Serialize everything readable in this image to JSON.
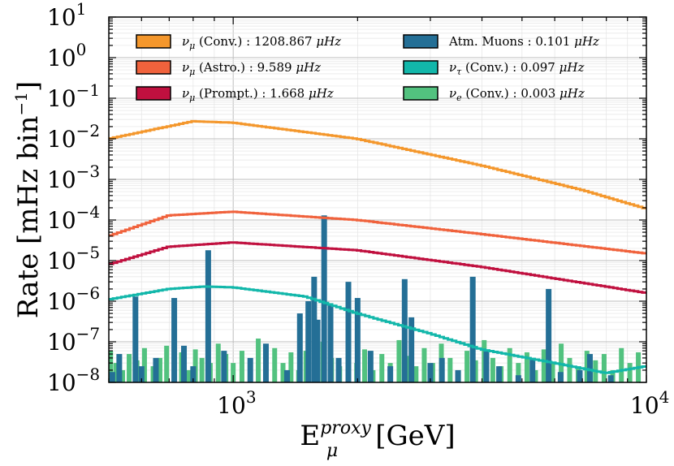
{
  "chart_data": {
    "type": "histogram-step",
    "title": "",
    "xlabel_main": "E",
    "xlabel_sub": "μ",
    "xlabel_sup": "proxy",
    "xlabel_unit": "[GeV]",
    "ylabel": "Rate [mHz bin",
    "ylabel_sup": "−1",
    "ylabel_close": "]",
    "xscale": "log",
    "yscale": "log",
    "xlim": [
      500,
      10000
    ],
    "ylim": [
      1e-08,
      10
    ],
    "grid": true,
    "legend_position": "top",
    "xticks": [
      {
        "value": 1000,
        "base": "10",
        "exp": "3"
      },
      {
        "value": 10000,
        "base": "10",
        "exp": "4"
      }
    ],
    "yticks": [
      {
        "value": 10,
        "base": "10",
        "exp": "1"
      },
      {
        "value": 1,
        "base": "10",
        "exp": "0"
      },
      {
        "value": 0.1,
        "base": "10",
        "exp": "−1"
      },
      {
        "value": 0.01,
        "base": "10",
        "exp": "−2"
      },
      {
        "value": 0.001,
        "base": "10",
        "exp": "−3"
      },
      {
        "value": 0.0001,
        "base": "10",
        "exp": "−4"
      },
      {
        "value": 1e-05,
        "base": "10",
        "exp": "−5"
      },
      {
        "value": 1e-06,
        "base": "10",
        "exp": "−6"
      },
      {
        "value": 1e-07,
        "base": "10",
        "exp": "−7"
      },
      {
        "value": 1e-08,
        "base": "10",
        "exp": "−8"
      }
    ],
    "series": [
      {
        "name": "conv-numu",
        "color": "#f4972c",
        "style": "step",
        "legend": {
          "particle": "ν",
          "sub": "μ",
          "rest": " (Conv.) : 1208.867 ",
          "unit": "μHz"
        },
        "points": [
          [
            500,
            0.01
          ],
          [
            800,
            0.027
          ],
          [
            1000,
            0.025
          ],
          [
            2000,
            0.01
          ],
          [
            4000,
            0.0022
          ],
          [
            7000,
            0.00055
          ],
          [
            10000,
            0.00019
          ]
        ]
      },
      {
        "name": "astro-numu",
        "color": "#f0623c",
        "style": "step",
        "legend": {
          "particle": "ν",
          "sub": "μ",
          "rest": " (Astro.) : 9.589 ",
          "unit": "μHz"
        },
        "points": [
          [
            500,
            4e-05
          ],
          [
            700,
            0.00013
          ],
          [
            1000,
            0.00016
          ],
          [
            2000,
            0.0001
          ],
          [
            4000,
            4.5e-05
          ],
          [
            10000,
            1.5e-05
          ]
        ]
      },
      {
        "name": "prompt-numu",
        "color": "#c0103f",
        "style": "step",
        "legend": {
          "particle": "ν",
          "sub": "μ",
          "rest": " (Prompt.) : 1.668 ",
          "unit": "μHz"
        },
        "points": [
          [
            500,
            8e-06
          ],
          [
            700,
            2.2e-05
          ],
          [
            1000,
            2.8e-05
          ],
          [
            2000,
            1.8e-05
          ],
          [
            4000,
            7e-06
          ],
          [
            10000,
            1.6e-06
          ]
        ]
      },
      {
        "name": "atm-muons",
        "color": "#246f96",
        "style": "bar",
        "legend": {
          "particle": "",
          "sub": "",
          "rest": "Atm. Muons : 0.101 ",
          "unit": "μHz"
        },
        "bars": [
          [
            510,
            1.8e-08
          ],
          [
            530,
            5e-08
          ],
          [
            580,
            1.3e-06
          ],
          [
            600,
            2.5e-08
          ],
          [
            650,
            4e-08
          ],
          [
            720,
            1.2e-06
          ],
          [
            760,
            8e-08
          ],
          [
            800,
            2.5e-08
          ],
          [
            870,
            1.8e-05
          ],
          [
            950,
            6e-08
          ],
          [
            1100,
            4e-08
          ],
          [
            1200,
            9e-08
          ],
          [
            1350,
            2e-08
          ],
          [
            1450,
            5e-07
          ],
          [
            1520,
            1e-06
          ],
          [
            1570,
            4e-06
          ],
          [
            1600,
            3.5e-07
          ],
          [
            1660,
            0.00013
          ],
          [
            1720,
            8e-07
          ],
          [
            1800,
            4e-08
          ],
          [
            1900,
            3e-06
          ],
          [
            2000,
            1.2e-06
          ],
          [
            2150,
            6e-08
          ],
          [
            2400,
            2.5e-08
          ],
          [
            2600,
            3.5e-06
          ],
          [
            2700,
            4e-07
          ],
          [
            3000,
            3e-08
          ],
          [
            3200,
            4e-08
          ],
          [
            3500,
            2e-08
          ],
          [
            3800,
            4e-06
          ],
          [
            4100,
            6e-08
          ],
          [
            4400,
            2.5e-08
          ],
          [
            4900,
            1.5e-08
          ],
          [
            5300,
            4e-08
          ],
          [
            5800,
            2e-06
          ],
          [
            6200,
            1.8e-08
          ],
          [
            6900,
            2e-08
          ],
          [
            7300,
            5e-08
          ],
          [
            8200,
            1.5e-08
          ]
        ]
      },
      {
        "name": "conv-nutau",
        "color": "#12b7aa",
        "style": "step",
        "legend": {
          "particle": "ν",
          "sub": "τ",
          "rest": " (Conv.) : 0.097 ",
          "unit": "μHz"
        },
        "points": [
          [
            500,
            1.1e-06
          ],
          [
            700,
            2e-06
          ],
          [
            850,
            2.3e-06
          ],
          [
            1000,
            2.2e-06
          ],
          [
            1500,
            1.3e-06
          ],
          [
            2000,
            5e-07
          ],
          [
            3000,
            1.6e-07
          ],
          [
            4000,
            6.5e-08
          ],
          [
            6000,
            3e-08
          ],
          [
            8000,
            1.7e-08
          ],
          [
            10000,
            2.5e-08
          ]
        ]
      },
      {
        "name": "conv-nue",
        "color": "#52c27f",
        "style": "bar",
        "legend": {
          "particle": "ν",
          "sub": "e",
          "rest": " (Conv.) : 0.003 ",
          "unit": "μHz"
        },
        "bars": [
          [
            505,
            6e-08
          ],
          [
            520,
            3e-08
          ],
          [
            540,
            2e-08
          ],
          [
            560,
            5e-08
          ],
          [
            585,
            3.5e-08
          ],
          [
            610,
            7e-08
          ],
          [
            640,
            2.5e-08
          ],
          [
            665,
            4e-08
          ],
          [
            690,
            8e-08
          ],
          [
            720,
            3e-08
          ],
          [
            750,
            5.5e-08
          ],
          [
            780,
            2e-08
          ],
          [
            810,
            6.5e-08
          ],
          [
            840,
            4e-08
          ],
          [
            880,
            3e-08
          ],
          [
            920,
            9e-08
          ],
          [
            960,
            5e-08
          ],
          [
            1000,
            3e-08
          ],
          [
            1050,
            6e-08
          ],
          [
            1100,
            2.5e-08
          ],
          [
            1150,
            1.2e-07
          ],
          [
            1200,
            4e-08
          ],
          [
            1260,
            7e-08
          ],
          [
            1320,
            3e-08
          ],
          [
            1380,
            5.5e-08
          ],
          [
            1440,
            2e-08
          ],
          [
            1500,
            6e-08
          ],
          [
            1580,
            3.5e-08
          ],
          [
            1650,
            1e-07
          ],
          [
            1730,
            4e-08
          ],
          [
            1810,
            2.5e-08
          ],
          [
            1900,
            8e-08
          ],
          [
            1990,
            3e-08
          ],
          [
            2080,
            6.5e-08
          ],
          [
            2180,
            2e-08
          ],
          [
            2290,
            5e-08
          ],
          [
            2400,
            3e-08
          ],
          [
            2520,
            1.1e-07
          ],
          [
            2640,
            4.5e-08
          ],
          [
            2770,
            2.5e-08
          ],
          [
            2900,
            7e-08
          ],
          [
            3040,
            3e-08
          ],
          [
            3190,
            9e-08
          ],
          [
            3350,
            4e-08
          ],
          [
            3510,
            2e-08
          ],
          [
            3680,
            6e-08
          ],
          [
            3860,
            3.5e-08
          ],
          [
            4050,
            1.1e-07
          ],
          [
            4250,
            4e-08
          ],
          [
            4450,
            2.5e-08
          ],
          [
            4670,
            7e-08
          ],
          [
            4900,
            3e-08
          ],
          [
            5140,
            5.5e-08
          ],
          [
            5390,
            2e-08
          ],
          [
            5650,
            6.5e-08
          ],
          [
            5930,
            3e-08
          ],
          [
            6220,
            9e-08
          ],
          [
            6520,
            4e-08
          ],
          [
            6840,
            2.5e-08
          ],
          [
            7180,
            6e-08
          ],
          [
            7530,
            3.5e-08
          ],
          [
            7900,
            5e-08
          ],
          [
            8290,
            2e-08
          ],
          [
            8700,
            7e-08
          ],
          [
            9120,
            3e-08
          ],
          [
            9560,
            5.5e-08
          ]
        ]
      }
    ]
  }
}
